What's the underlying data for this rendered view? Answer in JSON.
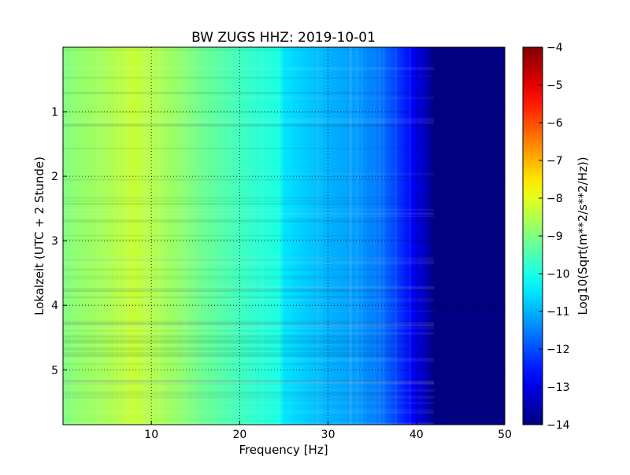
{
  "chart_data": {
    "type": "heatmap",
    "title": "BW ZUGS HHZ: 2019-10-01",
    "xlabel": "Frequency [Hz]",
    "ylabel": "Lokalzeit (UTC + 2 Stunde)",
    "xlim": [
      0,
      50
    ],
    "ylim": [
      5.85,
      0
    ],
    "x_ticks": [
      10,
      20,
      30,
      40,
      50
    ],
    "y_ticks": [
      1,
      2,
      3,
      4,
      5
    ],
    "grid": true,
    "colorbar": {
      "label": "Log10(Sqrt(m**2/s**2/Hz))",
      "range": [
        -14,
        -4
      ],
      "ticks": [
        -4,
        -5,
        -6,
        -7,
        -8,
        -9,
        -10,
        -11,
        -12,
        -13,
        -14
      ],
      "colormap": "jet"
    },
    "spectrum_profile": {
      "frequency_hz": [
        0,
        2,
        5,
        8,
        10,
        13,
        16,
        20,
        22,
        24.5,
        25,
        28,
        30,
        33,
        36,
        38,
        39.5,
        41,
        42,
        50
      ],
      "log10_amplitude": [
        -9.0,
        -8.8,
        -8.6,
        -8.3,
        -8.5,
        -8.8,
        -9.2,
        -9.6,
        -9.8,
        -10.0,
        -10.5,
        -10.8,
        -11.0,
        -11.2,
        -11.6,
        -12.2,
        -12.8,
        -13.4,
        -14.0,
        -14.0
      ]
    }
  }
}
